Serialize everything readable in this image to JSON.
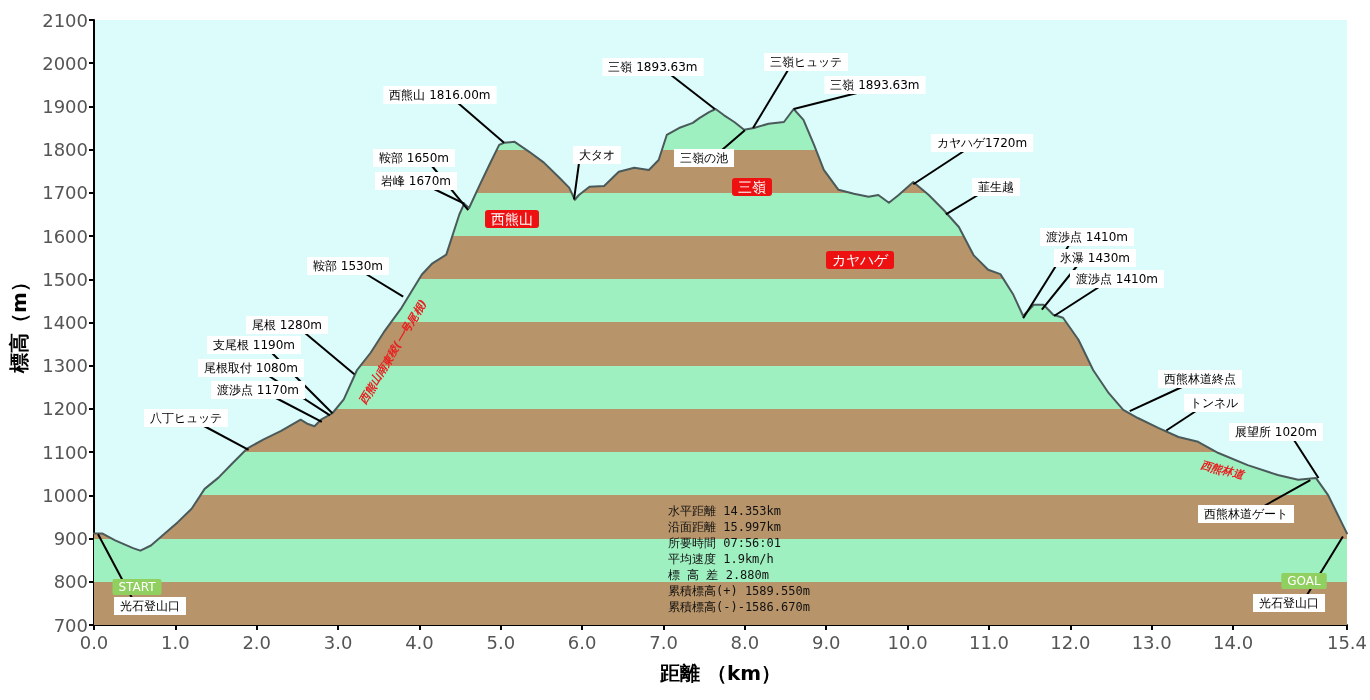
{
  "chart_data": {
    "type": "area",
    "xlabel": "距離 （km）",
    "ylabel": "標高（m）",
    "xlim": [
      0,
      15.4
    ],
    "xticks": [
      {
        "value": 0,
        "label": "0.0"
      },
      {
        "value": 1,
        "label": "1.0"
      },
      {
        "value": 2,
        "label": "2.0"
      },
      {
        "value": 3,
        "label": "3.0"
      },
      {
        "value": 4,
        "label": "4.0"
      },
      {
        "value": 5,
        "label": "5.0"
      },
      {
        "value": 6,
        "label": "6.0"
      },
      {
        "value": 7,
        "label": "7.0"
      },
      {
        "value": 8,
        "label": "8.0"
      },
      {
        "value": 9,
        "label": "9.0"
      },
      {
        "value": 10,
        "label": "10.0"
      },
      {
        "value": 11,
        "label": "11.0"
      },
      {
        "value": 12,
        "label": "12.0"
      },
      {
        "value": 13,
        "label": "13.0"
      },
      {
        "value": 14,
        "label": "14.0"
      },
      15.4
    ],
    "ylim": [
      700,
      2100
    ],
    "yticks": [
      700,
      800,
      900,
      1000,
      1100,
      1200,
      1300,
      1400,
      1500,
      1600,
      1700,
      1800,
      1900,
      2000,
      2100
    ],
    "grid": false,
    "marker": "none",
    "line_style": "solid",
    "series": [
      {
        "color": "#4a5a5a",
        "x": [
          0,
          0.1,
          0.26,
          0.48,
          0.57,
          0.7,
          0.87,
          1.03,
          1.2,
          1.36,
          1.53,
          1.69,
          1.88,
          2.08,
          2.3,
          2.54,
          2.63,
          2.71,
          2.79,
          2.93,
          3.07,
          3.23,
          3.4,
          3.56,
          3.78,
          4.03,
          4.16,
          4.33,
          4.49,
          4.55,
          4.61,
          4.74,
          4.86,
          4.98,
          5.04,
          5.17,
          5.35,
          5.53,
          5.72,
          5.84,
          5.91,
          5.96,
          6.09,
          6.27,
          6.45,
          6.64,
          6.82,
          6.94,
          7.04,
          7.19,
          7.36,
          7.44,
          7.56,
          7.64,
          7.74,
          7.87,
          7.99,
          8.11,
          8.29,
          8.48,
          8.6,
          8.72,
          8.85,
          8.97,
          9.15,
          9.34,
          9.52,
          9.64,
          9.77,
          9.89,
          10.07,
          10.26,
          10.44,
          10.63,
          10.81,
          10.99,
          11.14,
          11.3,
          11.42,
          11.55,
          11.67,
          11.79,
          11.91,
          12.1,
          12.28,
          12.47,
          12.65,
          12.83,
          13.08,
          13.33,
          13.57,
          13.82,
          14.18,
          14.55,
          14.8,
          15.02,
          15.17,
          15.35,
          15.4
        ],
        "values": [
          912,
          912,
          896,
          878,
          872,
          884,
          912,
          938,
          969,
          1015,
          1041,
          1072,
          1108,
          1129,
          1149,
          1175,
          1165,
          1160,
          1175,
          1190,
          1222,
          1289,
          1330,
          1377,
          1434,
          1511,
          1537,
          1557,
          1650,
          1675,
          1665,
          1718,
          1765,
          1811,
          1816,
          1818,
          1795,
          1770,
          1735,
          1712,
          1684,
          1695,
          1714,
          1716,
          1749,
          1758,
          1753,
          1776,
          1834,
          1850,
          1862,
          1873,
          1887,
          1894,
          1880,
          1864,
          1846,
          1850,
          1860,
          1864,
          1894,
          1869,
          1811,
          1753,
          1707,
          1698,
          1691,
          1695,
          1677,
          1695,
          1725,
          1695,
          1661,
          1621,
          1556,
          1522,
          1512,
          1464,
          1415,
          1441,
          1441,
          1418,
          1411,
          1360,
          1290,
          1237,
          1198,
          1179,
          1156,
          1135,
          1124,
          1098,
          1070,
          1047,
          1036,
          1040,
          1000,
          931,
          912
        ]
      }
    ],
    "annotations": [
      {
        "text": "光石登山口",
        "x": 0.05,
        "y": 910
      },
      "START",
      {
        "text": "八丁ヒュッテ",
        "x": 1.9,
        "y": 1105
      },
      {
        "text": "渡渉点 1170m",
        "x": 2.8,
        "y": 1170
      },
      {
        "text": "尾根取付 1080m",
        "x": 2.9,
        "y": 1185
      },
      {
        "text": "支尾根 1190m",
        "x": 2.93,
        "y": 1190
      },
      {
        "text": "尾根 1280m",
        "x": 3.2,
        "y": 1280
      },
      {
        "text": "鞍部 1530m",
        "x": 3.8,
        "y": 1460
      },
      {
        "text": "岩峰 1670m",
        "x": 4.55,
        "y": 1675
      },
      {
        "text": "鞍部 1650m",
        "x": 4.6,
        "y": 1660
      },
      {
        "text": "西熊山 1816.00m",
        "x": 5.04,
        "y": 1816
      },
      {
        "text": "大タオ",
        "x": 5.9,
        "y": 1685
      },
      {
        "text": "三嶺 1893.63m",
        "x": 7.63,
        "y": 1894
      },
      {
        "text": "三嶺ヒュッテ",
        "x": 8.1,
        "y": 1850
      },
      {
        "text": "三嶺の池",
        "x": 8.0,
        "y": 1845
      },
      {
        "text": "三嶺 1893.63m",
        "x": 8.6,
        "y": 1894
      },
      {
        "text": "カヤハゲ1720m",
        "x": 10.07,
        "y": 1720
      },
      {
        "text": "韮生越",
        "x": 10.47,
        "y": 1650
      },
      {
        "text": "渡渉点 1410m",
        "x": 11.42,
        "y": 1410
      },
      {
        "text": "氷瀑 1430m",
        "x": 11.65,
        "y": 1430
      },
      {
        "text": "渡渉点 1410m",
        "x": 11.8,
        "y": 1415
      },
      {
        "text": "西熊林道終点",
        "x": 12.73,
        "y": 1195
      },
      {
        "text": "トンネル",
        "x": 13.18,
        "y": 1150
      },
      {
        "text": "展望所 1020m",
        "x": 15.05,
        "y": 1040
      },
      {
        "text": "西熊林道ゲート",
        "x": 14.95,
        "y": 1035
      },
      {
        "text": "光石登山口",
        "x": 15.35,
        "y": 905
      },
      "GOAL",
      "西熊山",
      "三嶺",
      "カヤハゲ",
      "西熊山南東稜(一号尾根)",
      "西熊林道",
      "水平距離 14.353km",
      "沿面距離 15.997km",
      "所要時間 07:56:01",
      "平均速度 1.9km/h",
      "標 高 差 2.880m",
      "累積標高(+) 1589.550m",
      "累積標高(-)-1586.670m"
    ]
  }
}
